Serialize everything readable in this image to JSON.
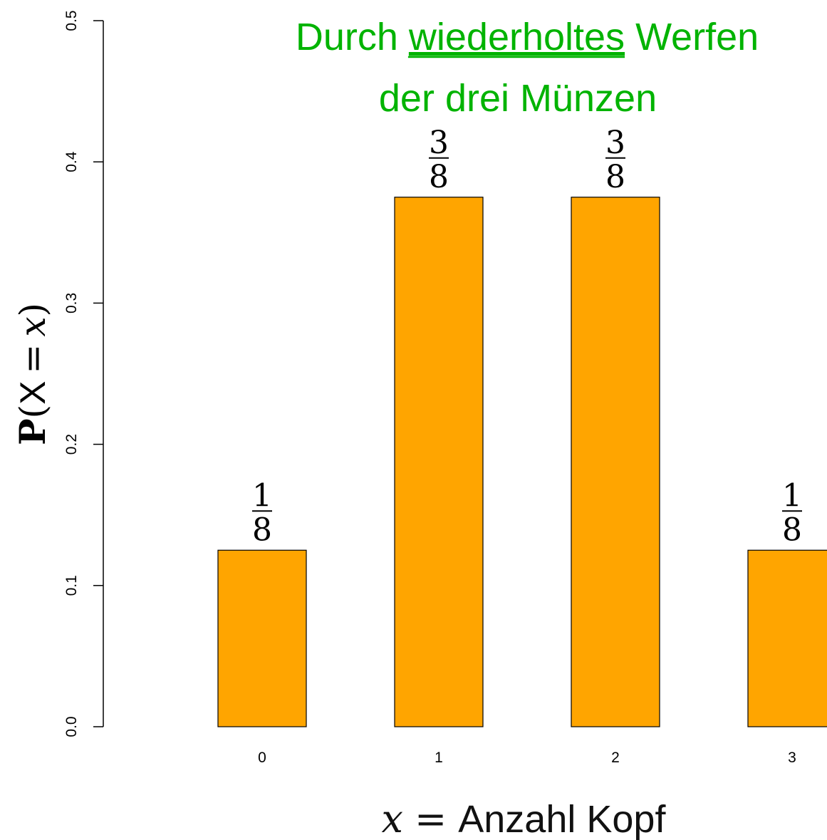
{
  "chart_data": {
    "type": "bar",
    "title_line1_before": "Durch ",
    "title_line1_underlined": "wiederholtes",
    "title_line1_after": " Werfen",
    "title_line2": "der drei Münzen",
    "title_color": "#00b300",
    "xlabel_var": "x",
    "xlabel_eq": "=",
    "xlabel_text": "Anzahl Kopf",
    "ylabel_P": "P",
    "ylabel_open": "(",
    "ylabel_X": "X",
    "ylabel_eq": "=",
    "ylabel_x": "x",
    "ylabel_close": ")",
    "categories": [
      "0",
      "1",
      "2",
      "3"
    ],
    "values": [
      0.125,
      0.375,
      0.375,
      0.125
    ],
    "value_labels": [
      {
        "num": "1",
        "den": "8"
      },
      {
        "num": "3",
        "den": "8"
      },
      {
        "num": "3",
        "den": "8"
      },
      {
        "num": "1",
        "den": "8"
      }
    ],
    "yticks": [
      "0.0",
      "0.1",
      "0.2",
      "0.3",
      "0.4",
      "0.5"
    ],
    "ylim": [
      0,
      0.5
    ],
    "bar_color": "#ffa500",
    "grid": false
  }
}
